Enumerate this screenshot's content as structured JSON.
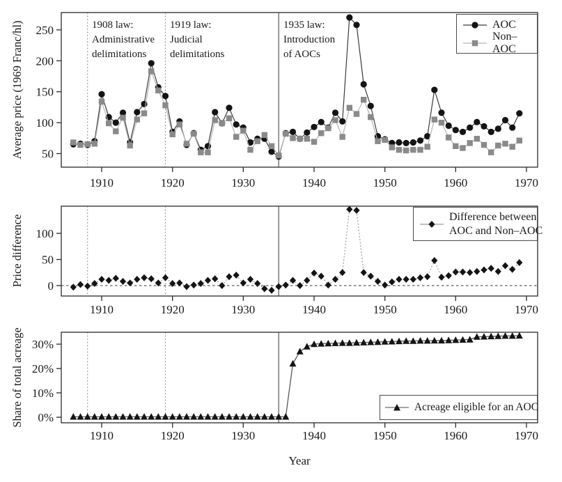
{
  "x": {
    "label": "Year",
    "ticks": [
      1910,
      1920,
      1930,
      1940,
      1950,
      1960,
      1970
    ],
    "years": [
      1906,
      1907,
      1908,
      1909,
      1910,
      1911,
      1912,
      1913,
      1914,
      1915,
      1916,
      1917,
      1918,
      1919,
      1920,
      1921,
      1922,
      1923,
      1924,
      1925,
      1926,
      1927,
      1928,
      1929,
      1930,
      1931,
      1932,
      1933,
      1934,
      1935,
      1936,
      1937,
      1938,
      1939,
      1940,
      1941,
      1942,
      1943,
      1944,
      1945,
      1946,
      1947,
      1948,
      1949,
      1950,
      1951,
      1952,
      1953,
      1954,
      1955,
      1956,
      1957,
      1958,
      1959,
      1960,
      1961,
      1962,
      1963,
      1964,
      1965,
      1966,
      1967,
      1968,
      1969
    ]
  },
  "events": [
    {
      "year": 1908,
      "style": "dotted",
      "lines": [
        "1908 law:",
        "Administrative",
        "delimitations"
      ]
    },
    {
      "year": 1919,
      "style": "dotted",
      "lines": [
        "1919 law:",
        "Judicial",
        "delimitations"
      ]
    },
    {
      "year": 1935,
      "style": "solid",
      "lines": [
        "1935 law:",
        "Introduction",
        "of AOCs"
      ]
    }
  ],
  "chart_data": [
    {
      "type": "line",
      "ylabel": "Average price (1969 Franc/hl)",
      "yticks": [
        50,
        100,
        150,
        200,
        250
      ],
      "ylim": [
        28,
        278
      ],
      "legend_position": "top-right",
      "series": [
        {
          "name": "AOC",
          "marker": "circle",
          "color": "#141414",
          "line_color": "#3a3a3a",
          "values": [
            65,
            66,
            64,
            70,
            146,
            109,
            100,
            116,
            68,
            117,
            130,
            196,
            157,
            143,
            85,
            102,
            64,
            83,
            56,
            62,
            117,
            99,
            124,
            97,
            92,
            68,
            74,
            74,
            53,
            45,
            83,
            85,
            74,
            84,
            93,
            101,
            92,
            116,
            102,
            270,
            258,
            162,
            127,
            78,
            73,
            67,
            68,
            67,
            68,
            71,
            78,
            153,
            116,
            95,
            88,
            85,
            92,
            101,
            94,
            85,
            90,
            104,
            92,
            115
          ]
        },
        {
          "name": "Non–AOC",
          "marker": "square",
          "color": "#8a8a8a",
          "line_color": "#b5b5b5",
          "values": [
            68,
            64,
            65,
            66,
            134,
            99,
            86,
            108,
            63,
            105,
            115,
            183,
            152,
            128,
            81,
            97,
            66,
            82,
            52,
            52,
            104,
            99,
            107,
            77,
            87,
            56,
            70,
            80,
            62,
            47,
            82,
            75,
            74,
            74,
            69,
            83,
            91,
            104,
            77,
            124,
            114,
            137,
            109,
            70,
            72,
            60,
            56,
            55,
            56,
            56,
            61,
            105,
            100,
            76,
            62,
            59,
            67,
            74,
            64,
            52,
            63,
            66,
            61,
            71
          ]
        }
      ]
    },
    {
      "type": "line",
      "ylabel": "Price difference",
      "yticks": [
        0,
        50,
        100
      ],
      "ylim": [
        -20,
        152
      ],
      "zero_line": true,
      "legend_position": "top-right",
      "series": [
        {
          "name": "Difference between AOC and Non–AOC",
          "legend_lines": [
            "Difference between",
            "AOC and Non–AOC"
          ],
          "marker": "diamond",
          "color": "#141414",
          "line_color": "#9a9a9a",
          "line_dash": "2 2.5",
          "values": [
            -3,
            2,
            -1,
            4,
            12,
            10,
            14,
            8,
            5,
            12,
            15,
            13,
            5,
            15,
            4,
            5,
            -2,
            1,
            4,
            10,
            13,
            0,
            17,
            20,
            5,
            12,
            4,
            -6,
            -9,
            -2,
            1,
            10,
            0,
            10,
            24,
            18,
            1,
            12,
            25,
            146,
            144,
            25,
            18,
            8,
            1,
            7,
            12,
            12,
            12,
            15,
            17,
            48,
            16,
            19,
            26,
            26,
            25,
            27,
            30,
            33,
            27,
            38,
            31,
            44
          ]
        }
      ]
    },
    {
      "type": "line",
      "ylabel": "Share of total acreage",
      "yticks": [
        0,
        10,
        20,
        30
      ],
      "ytick_suffix": "%",
      "ylim": [
        -2.3,
        34.9
      ],
      "legend_position": "bottom-right",
      "series": [
        {
          "name": "Acreage eligible for an AOC",
          "marker": "triangle",
          "color": "#141414",
          "line_color": "#4a4a4a",
          "values": [
            0.2,
            0.2,
            0.2,
            0.2,
            0.2,
            0.2,
            0.2,
            0.2,
            0.2,
            0.2,
            0.2,
            0.2,
            0.2,
            0.2,
            0.2,
            0.2,
            0.2,
            0.2,
            0.2,
            0.2,
            0.2,
            0.2,
            0.2,
            0.2,
            0.2,
            0.2,
            0.2,
            0.2,
            0.2,
            0.2,
            0.2,
            22,
            27,
            29,
            30,
            30.2,
            30.3,
            30.4,
            30.5,
            30.5,
            30.6,
            30.7,
            30.8,
            30.9,
            31,
            31.1,
            31.2,
            31.3,
            31.3,
            31.4,
            31.4,
            31.5,
            31.5,
            31.6,
            31.7,
            31.8,
            31.9,
            33,
            33.1,
            33.2,
            33.3,
            33.4,
            33.4,
            33.5
          ]
        }
      ]
    }
  ]
}
